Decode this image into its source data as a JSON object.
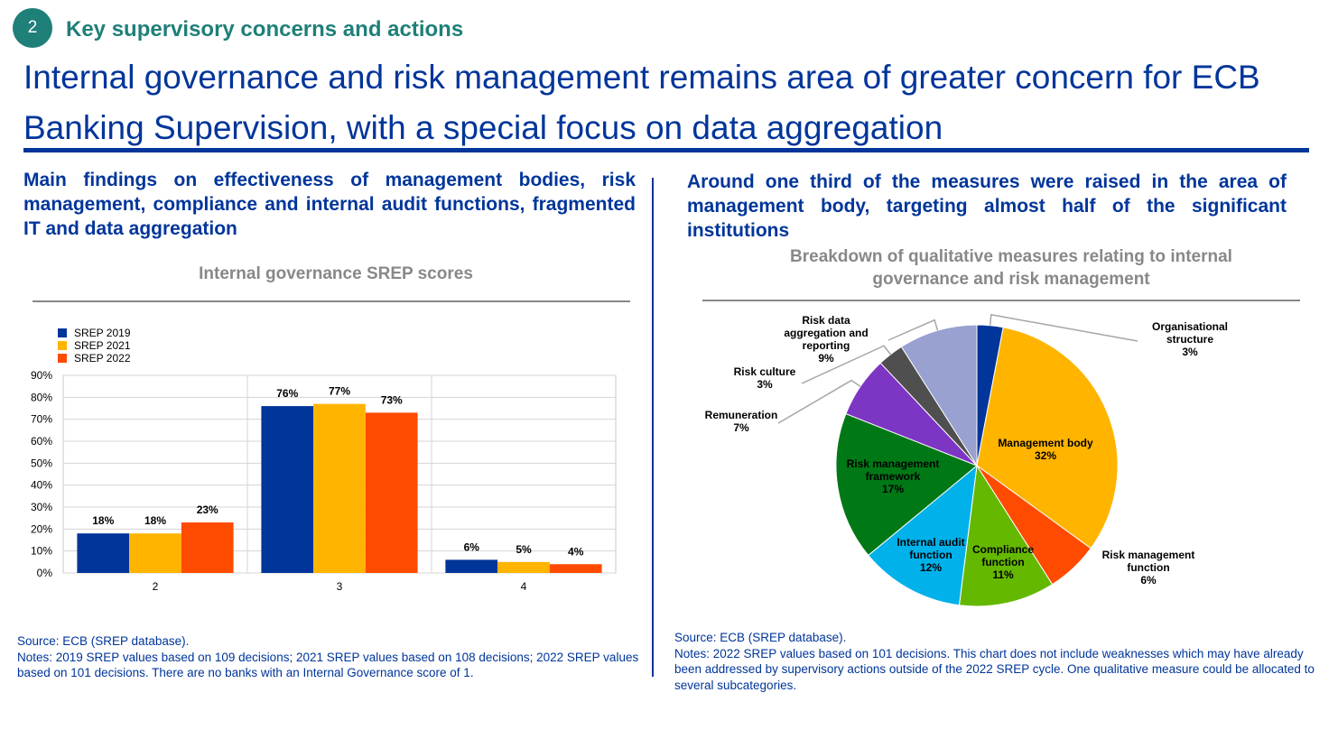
{
  "header": {
    "badge_number": "2",
    "section_title": "Key supervisory concerns and actions",
    "main_title": "Internal governance and risk management remains area of greater concern for ECB Banking Supervision, with a special focus on data aggregation"
  },
  "left": {
    "subheading": "Main findings on effectiveness of management bodies, risk management, compliance and internal audit functions, fragmented IT and data aggregation",
    "source": "Source: ECB (SREP database).",
    "notes": "Notes: 2019 SREP values based on 109 decisions; 2021 SREP values based on 108 decisions; 2022 SREP values based on 101 decisions. There are no banks with an Internal Governance score of 1."
  },
  "right": {
    "subheading": "Around one third of the measures were raised in the area of management body, targeting almost half of the significant institutions",
    "source": "Source: ECB (SREP database).",
    "notes": "Notes: 2022 SREP values based on 101 decisions. This chart does not include weaknesses which may have already been addressed by supervisory actions outside of the 2022 SREP cycle. One qualitative measure could be allocated to several subcategories."
  },
  "chart_data": [
    {
      "type": "bar",
      "title": "Internal governance SREP scores",
      "categories": [
        "2",
        "3",
        "4"
      ],
      "series": [
        {
          "name": "SREP 2019",
          "values": [
            18,
            76,
            6
          ],
          "color": "#00359a"
        },
        {
          "name": "SREP 2021",
          "values": [
            18,
            77,
            5
          ],
          "color": "#ffb400"
        },
        {
          "name": "SREP 2022",
          "values": [
            23,
            73,
            4
          ],
          "color": "#ff4b00"
        }
      ],
      "ylim": [
        0,
        90
      ],
      "yticks": [
        "0%",
        "10%",
        "20%",
        "30%",
        "40%",
        "50%",
        "60%",
        "70%",
        "80%",
        "90%"
      ],
      "value_suffix": "%",
      "legend": "top-left",
      "grid": true
    },
    {
      "type": "pie",
      "title": "Breakdown of qualitative measures relating to internal governance and risk management",
      "slices": [
        {
          "label": "Organisational structure",
          "value": 3,
          "color": "#00359a"
        },
        {
          "label": "Management body",
          "value": 32,
          "color": "#ffb400"
        },
        {
          "label": "Risk management function",
          "value": 6,
          "color": "#ff4b00"
        },
        {
          "label": "Compliance function",
          "value": 11,
          "color": "#65b800"
        },
        {
          "label": "Internal audit function",
          "value": 12,
          "color": "#00b1ea"
        },
        {
          "label": "Risk management framework",
          "value": 17,
          "color": "#007816"
        },
        {
          "label": "Remuneration",
          "value": 7,
          "color": "#7d35c4"
        },
        {
          "label": "Risk culture",
          "value": 3,
          "color": "#4f4f4f"
        },
        {
          "label": "Risk data aggregation and reporting",
          "value": 9,
          "color": "#98a1d0"
        }
      ],
      "value_suffix": "%"
    }
  ]
}
